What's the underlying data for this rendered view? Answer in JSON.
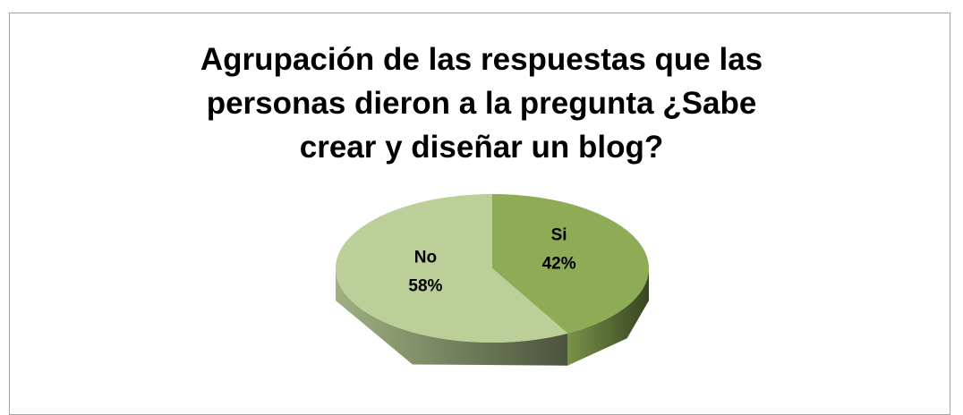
{
  "chart_data": {
    "type": "pie",
    "title": "Agrupación de las respuestas que las personas dieron a la pregunta ¿Sabe crear y diseñar un blog?",
    "categories": [
      "Si",
      "No"
    ],
    "values": [
      42,
      58
    ],
    "value_labels": [
      "42%",
      "58%"
    ],
    "colors": [
      "#8eab55",
      "#bccf98"
    ],
    "three_d": true
  }
}
